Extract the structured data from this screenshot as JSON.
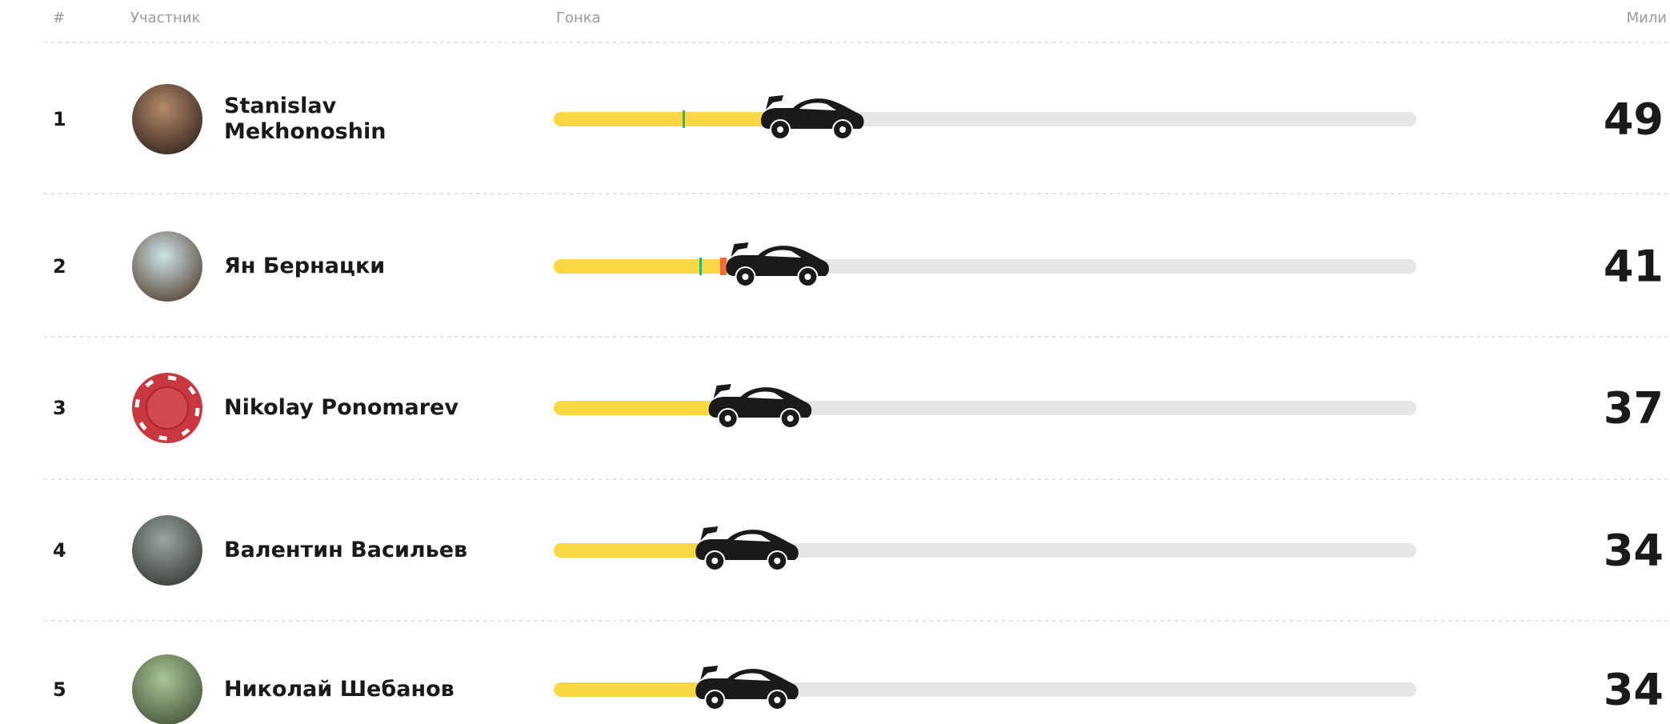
{
  "header": {
    "rank": "#",
    "participant": "Участник",
    "race": "Гонка",
    "miles": "Мили"
  },
  "rows": [
    {
      "rank": 1,
      "name": "Stanislav Mekhonoshin",
      "miles": 49
    },
    {
      "rank": 2,
      "name": "Ян Бернацки",
      "miles": 41
    },
    {
      "rank": 3,
      "name": "Nikolay Ponomarev",
      "miles": 37
    },
    {
      "rank": 4,
      "name": "Валентин Васильев",
      "miles": 34
    },
    {
      "rank": 5,
      "name": "Николай Шебанов",
      "miles": 34
    }
  ]
}
